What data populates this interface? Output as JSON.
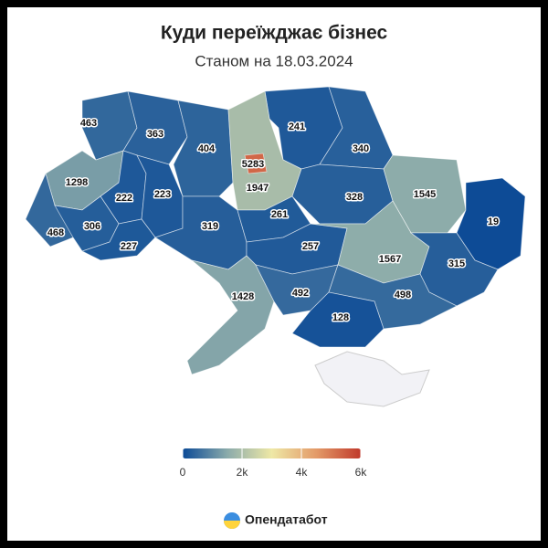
{
  "chart_data": {
    "type": "choropleth",
    "title": "Куди переїжджає бізнес",
    "subtitle": "Станом на 18.03.2024",
    "values": [
      463,
      363,
      404,
      241,
      340,
      5283,
      1947,
      1298,
      222,
      223,
      328,
      1545,
      19,
      468,
      306,
      227,
      319,
      261,
      257,
      1567,
      315,
      1428,
      492,
      498,
      128
    ],
    "colorscale": [
      "#0b4a96",
      "#8aaaaa",
      "#eee8a6",
      "#e39a68",
      "#c0392b"
    ],
    "clim": [
      0,
      6000
    ],
    "cticks": [
      0,
      {
        "value": 2000,
        "label": "2k"
      },
      {
        "value": 4000,
        "label": "4k"
      },
      {
        "value": 6000,
        "label": "6k"
      }
    ]
  },
  "brand": "Опендатабот"
}
